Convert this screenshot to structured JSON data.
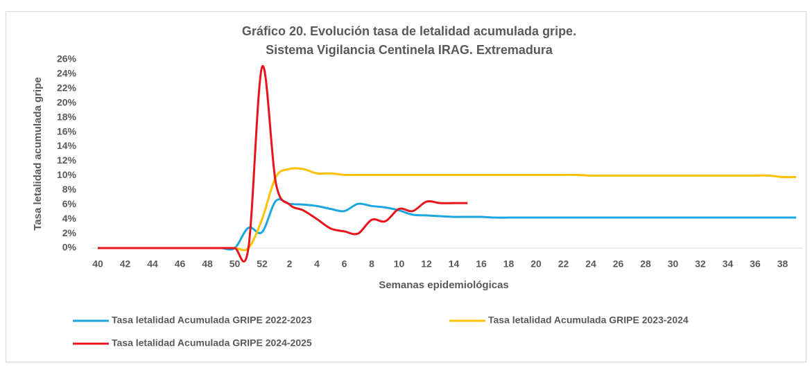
{
  "chart_data": {
    "type": "line",
    "title": "Gráfico 20. Evolución tasa de letalidad acumulada gripe.",
    "subtitle": "Sistema Vigilancia Centinela IRAG. Extremadura",
    "x_label": "Semanas epidemiológicas",
    "y_label": "Tasa letalidad acumulada gripe",
    "categories": [
      "40",
      null,
      "42",
      null,
      "44",
      null,
      "46",
      null,
      "48",
      null,
      "50",
      null,
      "52",
      null,
      "2",
      null,
      "4",
      null,
      "6",
      null,
      "8",
      null,
      "10",
      null,
      "12",
      null,
      "14",
      null,
      "16",
      null,
      "18",
      null,
      "20",
      null,
      "22",
      null,
      "24",
      null,
      "26",
      null,
      "28",
      null,
      "30",
      null,
      "32",
      null,
      "34",
      null,
      "36",
      null,
      "38",
      null
    ],
    "ylim": [
      0,
      26
    ],
    "yticks": [
      {
        "value": 0,
        "label": "0%"
      },
      {
        "value": 2,
        "label": "2%"
      },
      {
        "value": 4,
        "label": "4%"
      },
      {
        "value": 6,
        "label": "6%"
      },
      {
        "value": 8,
        "label": "8%"
      },
      {
        "value": 10,
        "label": "10%"
      },
      {
        "value": 12,
        "label": "12%"
      },
      {
        "value": 14,
        "label": "14%"
      },
      {
        "value": 16,
        "label": "16%"
      },
      {
        "value": 18,
        "label": "18%"
      },
      {
        "value": 20,
        "label": "20%"
      },
      {
        "value": 22,
        "label": "22%"
      },
      {
        "value": 24,
        "label": "24%"
      },
      {
        "value": 26,
        "label": "26%"
      }
    ],
    "grid": false,
    "legend": "bottom",
    "series": [
      {
        "name": "Tasa letalidad Acumulada GRIPE 2022-2023",
        "color": "#1aa7e0",
        "values": [
          0,
          0,
          0,
          0,
          0,
          0,
          0,
          0,
          0,
          0,
          0,
          2.8,
          2.2,
          6.5,
          6.1,
          6.0,
          5.8,
          5.4,
          5.1,
          6.1,
          5.8,
          5.6,
          5.2,
          4.6,
          4.5,
          4.4,
          4.3,
          4.3,
          4.3,
          4.2,
          4.2,
          4.2,
          4.2,
          4.2,
          4.2,
          4.2,
          4.2,
          4.2,
          4.2,
          4.2,
          4.2,
          4.2,
          4.2,
          4.2,
          4.2,
          4.2,
          4.2,
          4.2,
          4.2,
          4.2,
          4.2,
          4.2
        ]
      },
      {
        "name": "Tasa letalidad Acumulada GRIPE 2023-2024",
        "color": "#ffc000",
        "values": [
          0,
          0,
          0,
          0,
          0,
          0,
          0,
          0,
          0,
          0,
          0,
          0,
          4.0,
          9.8,
          10.9,
          10.9,
          10.3,
          10.3,
          10.1,
          10.1,
          10.1,
          10.1,
          10.1,
          10.1,
          10.1,
          10.1,
          10.1,
          10.1,
          10.1,
          10.1,
          10.1,
          10.1,
          10.1,
          10.1,
          10.1,
          10.1,
          10.0,
          10.0,
          10.0,
          10.0,
          10.0,
          10.0,
          10.0,
          10.0,
          10.0,
          10.0,
          10.0,
          10.0,
          10.0,
          10.0,
          9.8,
          9.8
        ]
      },
      {
        "name": "Tasa letalidad Acumulada GRIPE 2024-2025",
        "color": "#e8141c",
        "values": [
          0,
          0,
          0,
          0,
          0,
          0,
          0,
          0,
          0,
          0,
          0,
          0,
          25,
          9,
          6.0,
          5.2,
          4.0,
          2.7,
          2.3,
          2.0,
          3.9,
          3.7,
          5.4,
          5.1,
          6.4,
          6.2,
          6.2,
          6.2,
          null,
          null,
          null,
          null,
          null,
          null,
          null,
          null,
          null,
          null,
          null,
          null,
          null,
          null,
          null,
          null,
          null,
          null,
          null,
          null,
          null,
          null,
          null,
          null
        ]
      }
    ]
  }
}
